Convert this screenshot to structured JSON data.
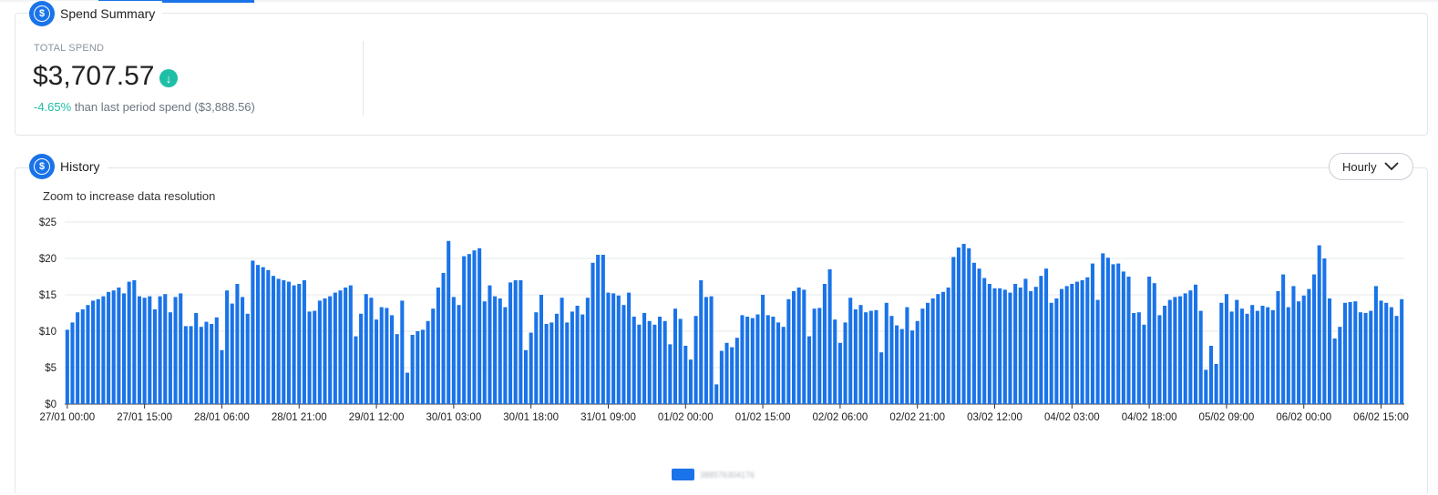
{
  "summary": {
    "title": "Spend Summary",
    "total_label": "TOTAL SPEND",
    "total_value": "$3,707.57",
    "change_pct": "-4.65%",
    "change_text": "than last period spend ($3,888.56)",
    "trend_icon": "arrow-down-icon"
  },
  "history": {
    "title": "History",
    "granularity": "Hourly",
    "zoom_hint": "Zoom to increase data resolution"
  },
  "colors": {
    "accent": "#1a73e8",
    "positive": "#1fbfa7",
    "bar": "#1a73e8"
  },
  "chart_data": {
    "type": "bar",
    "ylim": [
      0,
      25
    ],
    "y_ticks": [
      "$0",
      "$5",
      "$10",
      "$15",
      "$20",
      "$25"
    ],
    "x_tick_labels": [
      "27/01 00:00",
      "27/01 15:00",
      "28/01 06:00",
      "28/01 21:00",
      "29/01 12:00",
      "30/01 03:00",
      "30/01 18:00",
      "31/01 09:00",
      "01/02 00:00",
      "01/02 15:00",
      "02/02 06:00",
      "02/02 21:00",
      "03/02 12:00",
      "04/02 03:00",
      "04/02 18:00",
      "05/02 09:00",
      "06/02 00:00",
      "06/02 15:00"
    ],
    "x_tick_step_hours": 15,
    "grid": true,
    "legend_position": "bottom-center",
    "series": [
      {
        "name": "388576304176",
        "values": [
          10.2,
          11.2,
          12.6,
          13.0,
          13.6,
          14.2,
          14.4,
          14.8,
          15.4,
          15.6,
          16.0,
          15.2,
          16.8,
          17.0,
          14.8,
          14.6,
          14.8,
          13.0,
          14.8,
          15.1,
          12.6,
          14.7,
          15.2,
          10.7,
          10.7,
          12.5,
          10.6,
          11.3,
          11.0,
          11.9,
          7.4,
          15.6,
          13.8,
          16.5,
          14.7,
          12.4,
          19.7,
          19.1,
          18.8,
          18.4,
          17.6,
          17.2,
          17.0,
          16.8,
          16.3,
          16.5,
          17.0,
          12.7,
          12.8,
          14.2,
          14.5,
          14.8,
          15.3,
          15.6,
          16.0,
          16.3,
          9.3,
          12.4,
          15.1,
          14.6,
          11.6,
          13.3,
          13.2,
          12.2,
          9.6,
          14.2,
          4.3,
          9.5,
          10.0,
          10.2,
          11.4,
          13.1,
          16.0,
          18.0,
          22.4,
          14.7,
          13.6,
          20.3,
          20.6,
          21.1,
          21.4,
          14.1,
          16.3,
          14.8,
          14.5,
          13.3,
          16.7,
          17.0,
          17.0,
          7.4,
          9.8,
          12.6,
          15.0,
          11.0,
          11.2,
          12.4,
          14.6,
          11.2,
          12.7,
          13.5,
          12.3,
          14.6,
          19.4,
          20.5,
          20.5,
          15.3,
          15.2,
          14.9,
          13.6,
          15.3,
          12.0,
          10.9,
          12.5,
          11.4,
          10.9,
          12.0,
          11.4,
          8.2,
          13.1,
          11.7,
          8.0,
          6.1,
          12.1,
          17.0,
          14.7,
          14.8,
          2.7,
          7.3,
          8.4,
          7.8,
          9.1,
          12.2,
          12.0,
          11.8,
          12.3,
          15.0,
          12.2,
          12.0,
          11.2,
          10.6,
          14.4,
          15.5,
          16.0,
          15.7,
          9.3,
          13.1,
          13.2,
          16.5,
          18.5,
          11.6,
          8.4,
          11.2,
          14.6,
          13.0,
          13.6,
          12.6,
          12.8,
          12.9,
          7.1,
          13.9,
          12.1,
          10.8,
          10.3,
          13.3,
          10.1,
          11.4,
          13.1,
          13.9,
          14.5,
          15.1,
          15.4,
          16.0,
          20.2,
          21.5,
          22.0,
          21.4,
          19.4,
          18.6,
          17.3,
          16.5,
          15.9,
          15.9,
          15.7,
          15.3,
          16.5,
          16.0,
          17.2,
          15.5,
          16.1,
          17.6,
          18.6,
          13.9,
          14.5,
          15.8,
          16.2,
          16.5,
          16.8,
          17.0,
          17.4,
          19.3,
          14.3,
          20.7,
          20.1,
          19.2,
          19.3,
          18.2,
          17.5,
          12.5,
          12.6,
          10.9,
          17.5,
          16.6,
          12.2,
          13.5,
          14.3,
          14.7,
          14.8,
          15.2,
          15.6,
          16.4,
          12.8,
          4.7,
          8.0,
          5.5,
          13.9,
          15.1,
          12.7,
          14.3,
          13.1,
          12.4,
          13.6,
          12.8,
          13.5,
          13.3,
          12.9,
          15.5,
          17.8,
          13.3,
          16.2,
          14.1,
          14.9,
          15.8,
          17.8,
          21.8,
          20.0,
          14.5,
          9.0,
          10.6,
          13.9,
          14.0,
          14.1,
          12.6,
          12.5,
          12.8,
          16.2,
          14.2,
          13.9,
          13.3,
          12.1,
          14.4
        ]
      }
    ]
  }
}
